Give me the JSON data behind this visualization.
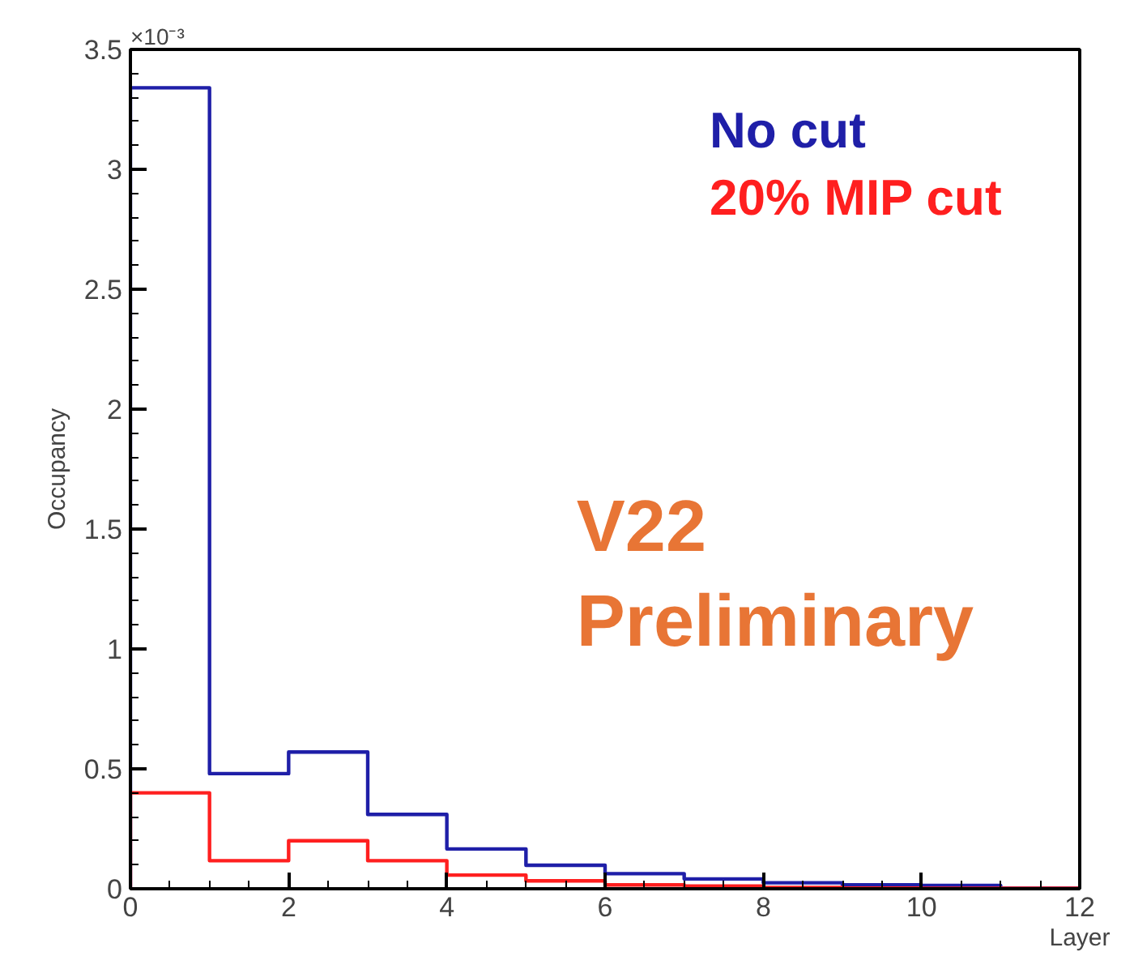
{
  "chart_data": {
    "type": "histogram",
    "xlabel": "Layer",
    "ylabel": "Occupancy",
    "bins": [
      0,
      1,
      2,
      3,
      4,
      5,
      6,
      7,
      8,
      9,
      10,
      11,
      12
    ],
    "series": [
      {
        "name": "No cut",
        "color": "#1f1fa8",
        "values": [
          3.34,
          0.48,
          0.57,
          0.31,
          0.166,
          0.098,
          0.063,
          0.041,
          0.025,
          0.016,
          0.014,
          0.003
        ]
      },
      {
        "name": "20% MIP cut",
        "color": "#ff1f1f",
        "values": [
          0.4,
          0.117,
          0.2,
          0.117,
          0.057,
          0.033,
          0.016,
          0.011,
          0.005,
          0.003,
          0.002,
          0.002
        ]
      }
    ],
    "xlim": [
      0,
      12
    ],
    "xticks": [
      0,
      2,
      4,
      6,
      8,
      10,
      12
    ],
    "ylim": [
      0,
      3.5
    ],
    "yticks": [
      0,
      0.5,
      1,
      1.5,
      2,
      2.5,
      3,
      3.5
    ],
    "annotations": [
      "×10⁻³",
      "V22\nPreliminary"
    ],
    "grid": false,
    "legend": "top right"
  }
}
